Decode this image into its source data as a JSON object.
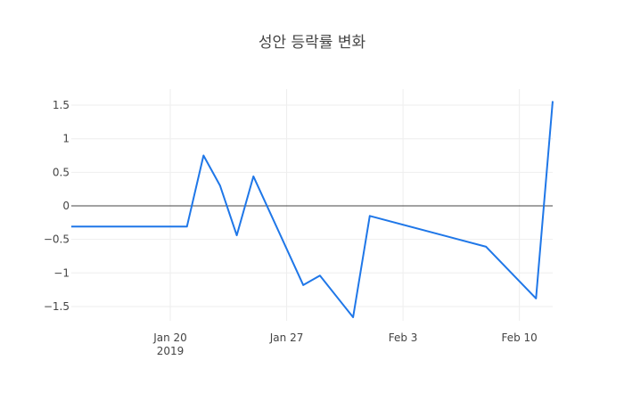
{
  "chart_data": {
    "type": "line",
    "title": "성안 등락률 변화",
    "xlabel": "",
    "ylabel": "",
    "x": [
      "2019-01-14",
      "2019-01-21",
      "2019-01-22",
      "2019-01-23",
      "2019-01-24",
      "2019-01-25",
      "2019-01-28",
      "2019-01-29",
      "2019-01-31",
      "2019-02-01",
      "2019-02-08",
      "2019-02-11",
      "2019-02-12"
    ],
    "series": [
      {
        "name": "등락률",
        "color": "#1f77e8",
        "values": [
          -0.31,
          -0.31,
          0.75,
          0.3,
          -0.44,
          0.44,
          -1.18,
          -1.04,
          -1.66,
          -0.15,
          -0.61,
          -1.38,
          1.56
        ]
      }
    ],
    "ylim": [
      -1.72,
      1.72
    ],
    "yticks": [
      1.5,
      1,
      0.5,
      0,
      -0.5,
      -1,
      -1.5
    ],
    "ytick_labels": [
      "1.5",
      "1",
      "0.5",
      "0",
      "−0.5",
      "−1",
      "−1.5"
    ],
    "xticks": [
      {
        "label": "Jan 20",
        "sublabel": "2019",
        "date": "2019-01-20"
      },
      {
        "label": "Jan 27",
        "sublabel": "",
        "date": "2019-01-27"
      },
      {
        "label": "Feb 3",
        "sublabel": "",
        "date": "2019-02-03"
      },
      {
        "label": "Feb 10",
        "sublabel": "",
        "date": "2019-02-10"
      }
    ],
    "grid": true,
    "zero_line": true,
    "legend": null
  }
}
